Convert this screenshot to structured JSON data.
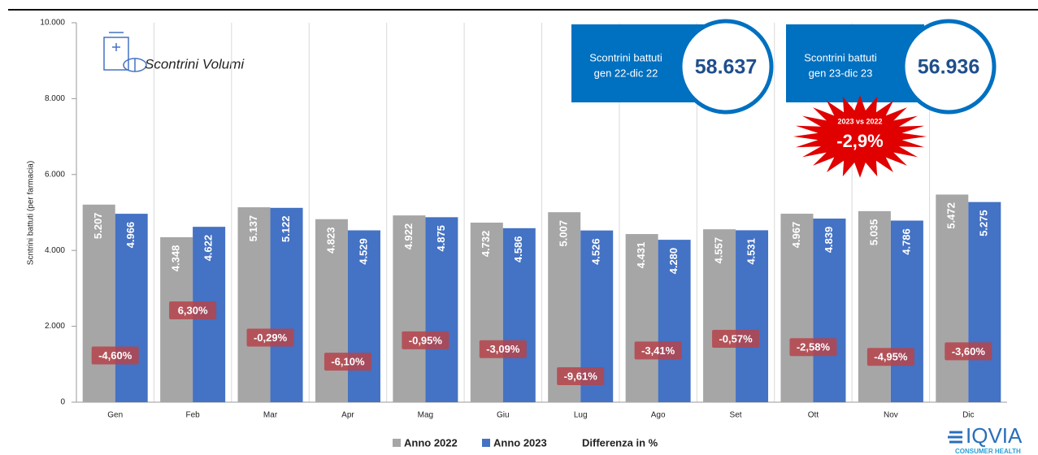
{
  "chart_data": {
    "type": "bar",
    "title": "Scontrini Volumi",
    "y_label": "Scntrini battuti (per farmacia)",
    "categories": [
      "Gen",
      "Feb",
      "Mar",
      "Apr",
      "Mag",
      "Giu",
      "Lug",
      "Ago",
      "Set",
      "Ott",
      "Nov",
      "Dic"
    ],
    "series": [
      {
        "name": "Anno 2022",
        "color": "#a6a6a6",
        "values": [
          5207,
          4348,
          5137,
          4823,
          4922,
          4732,
          5007,
          4431,
          4557,
          4967,
          5035,
          5472
        ],
        "value_labels": [
          "5.207",
          "4.348",
          "5.137",
          "4.823",
          "4.922",
          "4.732",
          "5.007",
          "4.431",
          "4.557",
          "4.967",
          "5.035",
          "5.472"
        ]
      },
      {
        "name": "Anno 2023",
        "color": "#4472c4",
        "values": [
          4966,
          4622,
          5122,
          4529,
          4875,
          4586,
          4526,
          4280,
          4531,
          4839,
          4786,
          5275
        ],
        "value_labels": [
          "4.966",
          "4.622",
          "5.122",
          "4.529",
          "4.875",
          "4.586",
          "4.526",
          "4.280",
          "4.531",
          "4.839",
          "4.786",
          "5.275"
        ]
      }
    ],
    "differences": {
      "name": "Differenza in %",
      "color": "#b5444b",
      "values": [
        -4.6,
        6.3,
        -0.29,
        -6.1,
        -0.95,
        -3.09,
        -9.61,
        -3.41,
        -0.57,
        -2.58,
        -4.95,
        -3.6
      ],
      "value_labels": [
        "-4,60%",
        "6,30%",
        "-0,29%",
        "-6,10%",
        "-0,95%",
        "-3,09%",
        "-9,61%",
        "-3,41%",
        "-0,57%",
        "-2,58%",
        "-4,95%",
        "-3,60%"
      ]
    },
    "ylim": [
      0,
      10000
    ],
    "yticks": [
      0,
      {
        "value": 2000,
        "label": "2.000"
      },
      {
        "value": 4000,
        "label": "4.000"
      },
      {
        "value": 6000,
        "label": "6.000"
      },
      {
        "value": 8000,
        "label": "8.000"
      },
      {
        "value": 10000,
        "label": "10.000"
      }
    ],
    "grid": true,
    "callouts": [
      {
        "text": [
          "Scontrini battuti",
          "gen 22-dic 22"
        ],
        "total": "58.637"
      },
      {
        "text": [
          "Scontrini battuti",
          "gen 23-dic 23"
        ],
        "total": "56.936"
      }
    ],
    "burst": {
      "text": "2023 vs 2022",
      "value": "-2,9%"
    },
    "logo": {
      "name": "IQVIA",
      "subtitle": "CONSUMER HEALTH"
    }
  }
}
